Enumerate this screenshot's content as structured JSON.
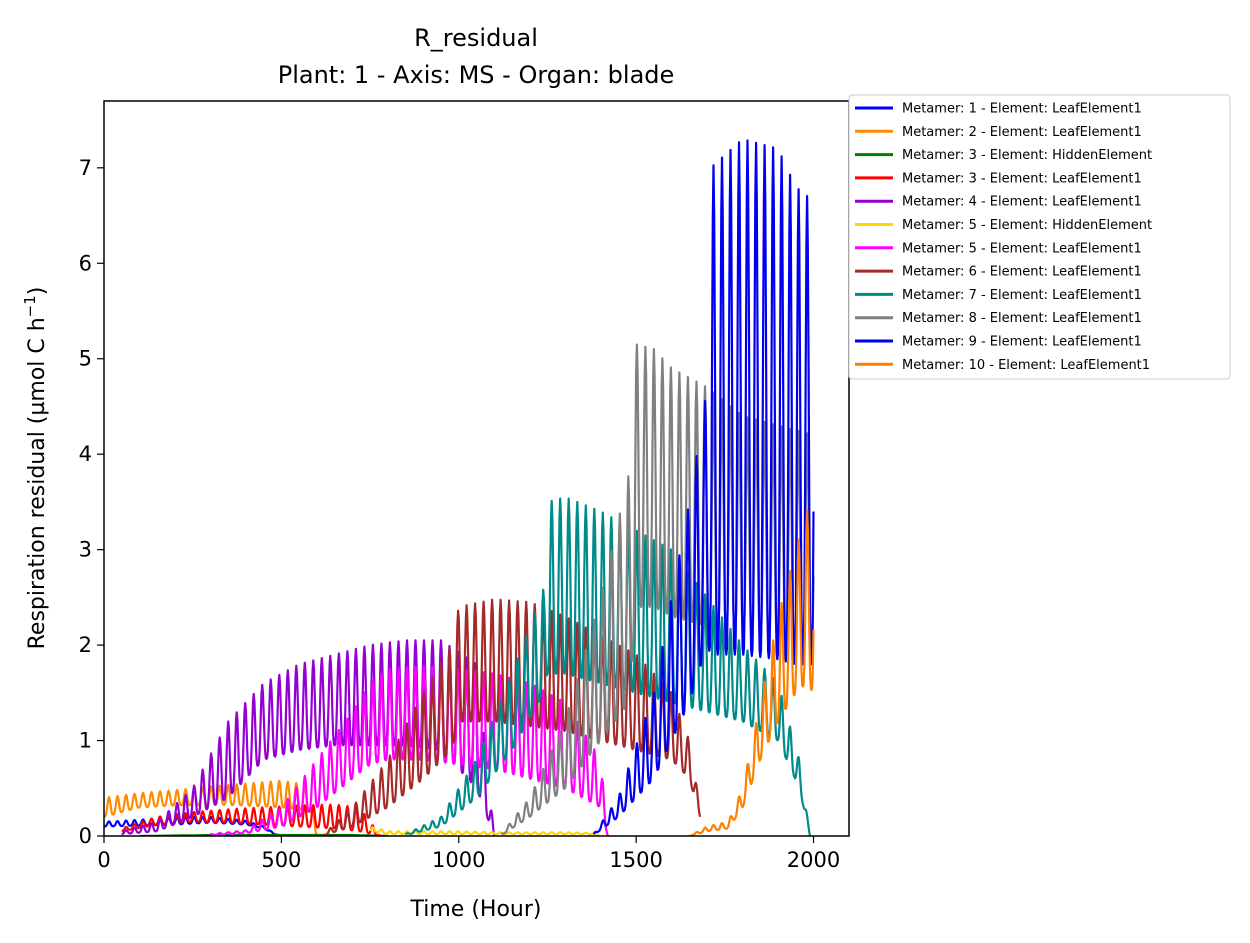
{
  "chart_data": {
    "type": "line",
    "title": "R_residual",
    "subtitle": "Plant: 1 - Axis: MS - Organ: blade",
    "xlabel": "Time (Hour)",
    "ylabel_main": "Respiration residual (µmol C h",
    "ylabel_sup": "−1",
    "ylabel_close": ")",
    "xlim": [
      0,
      2100
    ],
    "ylim": [
      0,
      7.7
    ],
    "xticks": [
      0,
      500,
      1000,
      1500,
      2000
    ],
    "xtick_labels": [
      "0",
      "500",
      "1000",
      "1500",
      "2000"
    ],
    "yticks": [
      0,
      1,
      2,
      3,
      4,
      5,
      6,
      7
    ],
    "ytick_labels": [
      "0",
      "1",
      "2",
      "3",
      "4",
      "5",
      "6",
      "7"
    ],
    "legend_position": "outside upper right",
    "series": [
      {
        "name": "Metamer: 1 - Element: LeafElement1",
        "color": "#0000ff",
        "x": [
          0,
          100,
          200,
          300,
          400,
          450,
          480,
          500
        ],
        "base": [
          0.1,
          0.11,
          0.12,
          0.14,
          0.12,
          0.08,
          0.02,
          0
        ],
        "peak": [
          0.15,
          0.17,
          0.2,
          0.2,
          0.16,
          0.1,
          0.03,
          0
        ]
      },
      {
        "name": "Metamer: 2 - Element: LeafElement1",
        "color": "#ff8c00",
        "x": [
          0,
          100,
          200,
          300,
          400,
          500,
          550,
          580,
          600
        ],
        "base": [
          0.2,
          0.3,
          0.32,
          0.33,
          0.32,
          0.3,
          0.28,
          0.25,
          0
        ],
        "peak": [
          0.4,
          0.45,
          0.48,
          0.52,
          0.55,
          0.58,
          0.55,
          0.5,
          0
        ]
      },
      {
        "name": "Metamer: 3 - Element: HiddenElement",
        "color": "#008000",
        "x": [
          100,
          300,
          500,
          700,
          800
        ],
        "base": [
          0,
          0.01,
          0.01,
          0.01,
          0
        ],
        "peak": [
          0,
          0.01,
          0.01,
          0.01,
          0
        ]
      },
      {
        "name": "Metamer: 3 - Element: LeafElement1",
        "color": "#ff0000",
        "x": [
          50,
          150,
          250,
          350,
          450,
          550,
          650,
          720,
          780
        ],
        "base": [
          0.05,
          0.12,
          0.15,
          0.14,
          0.12,
          0.1,
          0.08,
          0.05,
          0
        ],
        "peak": [
          0.08,
          0.2,
          0.25,
          0.28,
          0.3,
          0.32,
          0.33,
          0.3,
          0
        ]
      },
      {
        "name": "Metamer: 4 - Element: LeafElement1",
        "color": "#9400d3",
        "x": [
          50,
          150,
          250,
          350,
          450,
          550,
          650,
          750,
          850,
          950,
          1050,
          1100
        ],
        "base": [
          0.02,
          0.05,
          0.2,
          0.4,
          0.8,
          0.9,
          0.95,
          0.95,
          0.95,
          0.9,
          0.5,
          0
        ],
        "peak": [
          0.05,
          0.15,
          0.5,
          1.2,
          1.6,
          1.8,
          1.9,
          2.0,
          2.05,
          2.05,
          1.8,
          0
        ]
      },
      {
        "name": "Metamer: 5 - Element: HiddenElement",
        "color": "#ffd700",
        "x": [
          750,
          800,
          900,
          1000,
          1100,
          1200,
          1300,
          1380,
          1400
        ],
        "base": [
          0.05,
          0.02,
          0.02,
          0.02,
          0.02,
          0.02,
          0.02,
          0.02,
          0
        ],
        "peak": [
          0.1,
          0.05,
          0.05,
          0.05,
          0.04,
          0.04,
          0.04,
          0.03,
          0
        ]
      },
      {
        "name": "Metamer: 5 - Element: LeafElement1",
        "color": "#ff00ff",
        "x": [
          300,
          400,
          500,
          600,
          700,
          750,
          800,
          900,
          1000,
          1100,
          1200,
          1300,
          1400,
          1420
        ],
        "base": [
          0.01,
          0.03,
          0.1,
          0.3,
          0.6,
          0.75,
          0.8,
          0.8,
          0.75,
          0.7,
          0.6,
          0.5,
          0.3,
          0
        ],
        "peak": [
          0.02,
          0.06,
          0.3,
          0.8,
          1.3,
          1.6,
          1.75,
          1.78,
          1.75,
          1.7,
          1.6,
          1.4,
          0.8,
          0
        ]
      },
      {
        "name": "Metamer: 6 - Element: LeafElement1",
        "color": "#a52a2a",
        "x": [
          620,
          700,
          800,
          900,
          980,
          1000,
          1100,
          1200,
          1300,
          1400,
          1500,
          1600,
          1650,
          1680
        ],
        "base": [
          0.01,
          0.1,
          0.3,
          0.6,
          0.9,
          1.2,
          1.2,
          1.15,
          1.1,
          1.0,
          0.9,
          0.8,
          0.6,
          0.2
        ],
        "peak": [
          0.02,
          0.3,
          0.8,
          1.5,
          2.0,
          2.4,
          2.48,
          2.45,
          2.3,
          2.1,
          1.9,
          1.5,
          1.0,
          0.3
        ]
      },
      {
        "name": "Metamer: 7 - Element: LeafElement1",
        "color": "#008b8b",
        "x": [
          850,
          950,
          1050,
          1150,
          1240,
          1250,
          1300,
          1400,
          1500,
          1600,
          1700,
          1800,
          1900,
          1960,
          1990
        ],
        "base": [
          0.01,
          0.1,
          0.4,
          0.9,
          1.5,
          1.7,
          1.7,
          1.6,
          1.5,
          1.4,
          1.3,
          1.2,
          1.0,
          0.5,
          0
        ],
        "peak": [
          0.02,
          0.2,
          0.8,
          1.7,
          2.6,
          3.5,
          3.55,
          3.4,
          3.2,
          3.0,
          2.5,
          2.0,
          1.6,
          0.8,
          0
        ]
      },
      {
        "name": "Metamer: 8 - Element: LeafElement1",
        "color": "#808080",
        "x": [
          1120,
          1200,
          1300,
          1400,
          1480,
          1500,
          1550,
          1600,
          1700,
          1800,
          1900,
          2000
        ],
        "base": [
          0.01,
          0.2,
          0.5,
          1.0,
          1.4,
          2.4,
          2.4,
          2.3,
          2.2,
          2.1,
          2.0,
          2.0
        ],
        "peak": [
          0.02,
          0.4,
          1.2,
          2.5,
          3.8,
          5.15,
          5.1,
          4.9,
          4.7,
          4.4,
          4.3,
          4.2
        ]
      },
      {
        "name": "Metamer: 9 - Element: LeafElement1",
        "color": "#0000ee",
        "x": [
          1380,
          1450,
          1550,
          1650,
          1700,
          1710,
          1800,
          1900,
          1950,
          2000
        ],
        "base": [
          0.01,
          0.2,
          0.6,
          1.4,
          2.0,
          1.9,
          1.9,
          1.85,
          1.8,
          1.8
        ],
        "peak": [
          0.02,
          0.4,
          1.5,
          3.5,
          4.7,
          7.0,
          7.3,
          7.2,
          6.8,
          6.65
        ]
      },
      {
        "name": "Metamer: 10 - Element: LeafElement1",
        "color": "#ff7f00",
        "x": [
          1650,
          1700,
          1760,
          1800,
          1850,
          1900,
          1950,
          1980,
          2000
        ],
        "base": [
          0,
          0.05,
          0.08,
          0.3,
          0.8,
          1.2,
          1.5,
          1.6,
          1.5
        ],
        "peak": [
          0,
          0.1,
          0.15,
          0.5,
          1.4,
          2.3,
          3.0,
          3.4,
          3.5
        ]
      }
    ]
  }
}
